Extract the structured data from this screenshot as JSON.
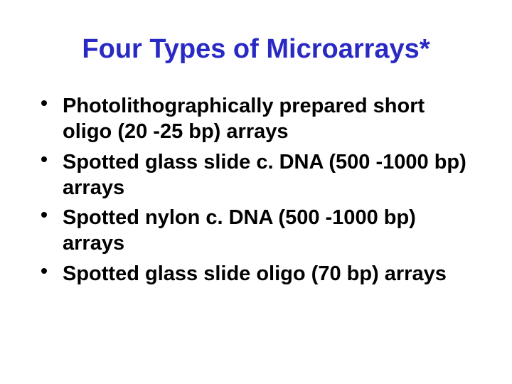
{
  "slide": {
    "title": "Four Types of Microarrays*",
    "title_color": "#2929c4",
    "title_fontsize": 38,
    "body_color": "#000000",
    "body_fontsize": 29,
    "background_color": "#ffffff",
    "bullets": [
      "Photolithographically prepared short oligo (20 -25 bp) arrays",
      "Spotted glass slide c. DNA (500 -1000 bp) arrays",
      "Spotted nylon c. DNA (500 -1000 bp) arrays",
      "Spotted glass slide oligo (70 bp) arrays"
    ]
  }
}
